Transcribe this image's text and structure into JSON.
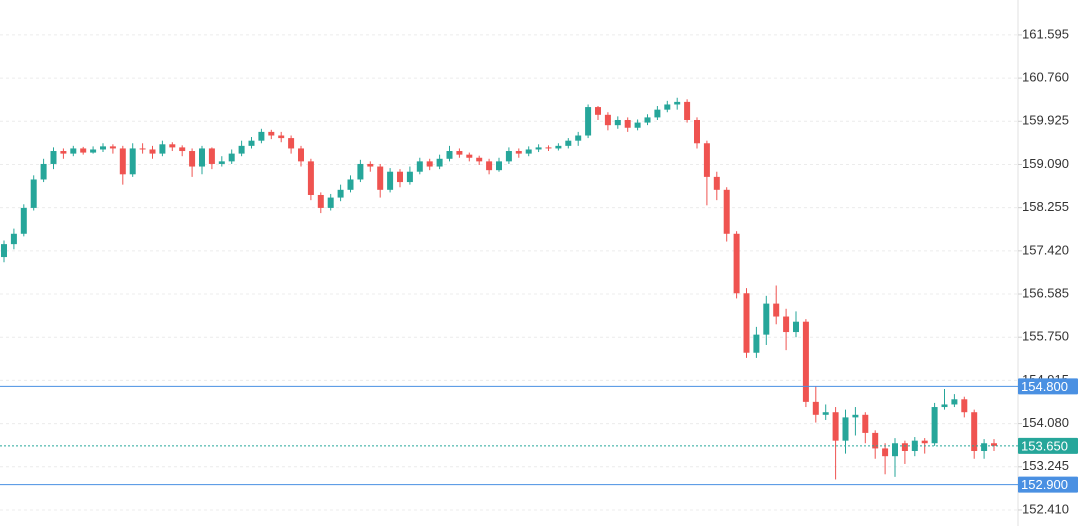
{
  "chart_data": {
    "type": "candlestick",
    "ylim": [
      152.1,
      162.27
    ],
    "yticks": [
      {
        "value": 161.595,
        "label": "161.595"
      },
      {
        "value": 160.76,
        "label": "160.760"
      },
      {
        "value": 159.925,
        "label": "159.925"
      },
      {
        "value": 159.09,
        "label": "159.090"
      },
      {
        "value": 158.255,
        "label": "158.255"
      },
      {
        "value": 157.42,
        "label": "157.420"
      },
      {
        "value": 156.585,
        "label": "156.585"
      },
      {
        "value": 155.75,
        "label": "155.750"
      },
      {
        "value": 154.915,
        "label": "154.915"
      },
      {
        "value": 154.08,
        "label": "154.080"
      },
      {
        "value": 153.245,
        "label": "153.245"
      },
      {
        "value": 152.41,
        "label": "152.410"
      }
    ],
    "grid": true,
    "up_color": "#26a69a",
    "down_color": "#ef5350",
    "open": [
      157.3,
      157.55,
      157.75,
      158.25,
      158.8,
      159.1,
      159.35,
      159.3,
      159.4,
      159.32,
      159.38,
      159.44,
      159.4,
      158.9,
      159.4,
      159.38,
      159.3,
      159.48,
      159.42,
      159.35,
      159.05,
      159.4,
      159.1,
      159.15,
      159.3,
      159.45,
      159.55,
      159.72,
      159.65,
      159.6,
      159.4,
      159.15,
      158.5,
      158.25,
      158.45,
      158.6,
      158.8,
      159.1,
      159.05,
      158.6,
      158.95,
      158.75,
      158.95,
      159.15,
      159.05,
      159.2,
      159.35,
      159.28,
      159.22,
      159.15,
      158.98,
      159.15,
      159.35,
      159.3,
      159.38,
      159.42,
      159.4,
      159.45,
      159.55,
      159.65,
      160.2,
      160.05,
      159.85,
      159.95,
      159.8,
      159.9,
      160.0,
      160.15,
      160.25,
      160.3,
      159.95,
      159.5,
      158.85,
      158.6,
      157.75,
      156.6,
      155.45,
      155.8,
      156.4,
      156.15,
      155.85,
      156.05,
      154.5,
      154.25,
      154.3,
      153.75,
      154.2,
      154.25,
      153.9,
      153.6,
      153.45,
      153.7,
      153.55,
      153.75,
      153.7,
      154.4,
      154.45,
      154.55,
      154.3,
      153.55,
      153.7
    ],
    "high": [
      157.62,
      157.85,
      158.32,
      158.88,
      159.2,
      159.42,
      159.4,
      159.45,
      159.43,
      159.44,
      159.5,
      159.48,
      159.45,
      159.5,
      159.5,
      159.45,
      159.55,
      159.52,
      159.46,
      159.4,
      159.45,
      159.42,
      159.25,
      159.38,
      159.55,
      159.62,
      159.78,
      159.76,
      159.72,
      159.65,
      159.45,
      159.2,
      158.55,
      158.52,
      158.7,
      158.88,
      159.18,
      159.15,
      159.1,
      159.02,
      159.0,
      159.05,
      159.22,
      159.2,
      159.28,
      159.45,
      159.4,
      159.32,
      159.26,
      159.2,
      159.22,
      159.42,
      159.4,
      159.44,
      159.48,
      159.46,
      159.5,
      159.6,
      159.72,
      160.25,
      160.22,
      160.1,
      160.02,
      160.0,
      159.96,
      160.06,
      160.22,
      160.32,
      160.38,
      160.35,
      160.0,
      159.55,
      158.95,
      158.65,
      157.8,
      156.7,
      155.95,
      156.55,
      156.75,
      156.3,
      156.25,
      156.1,
      154.8,
      154.45,
      154.4,
      154.35,
      154.4,
      154.3,
      153.95,
      153.7,
      153.8,
      153.75,
      153.82,
      153.8,
      154.48,
      154.75,
      154.65,
      154.6,
      154.35,
      153.78,
      153.78
    ],
    "low": [
      157.2,
      157.45,
      157.7,
      158.2,
      158.75,
      159.0,
      159.2,
      159.25,
      159.28,
      159.3,
      159.33,
      159.3,
      158.7,
      158.85,
      159.3,
      159.2,
      159.25,
      159.35,
      159.25,
      158.85,
      158.9,
      159.0,
      159.05,
      159.1,
      159.25,
      159.4,
      159.5,
      159.58,
      159.52,
      159.3,
      159.05,
      158.4,
      158.15,
      158.2,
      158.38,
      158.55,
      158.75,
      158.95,
      158.45,
      158.55,
      158.65,
      158.7,
      158.9,
      158.98,
      159.0,
      159.15,
      159.22,
      159.15,
      159.08,
      158.9,
      158.95,
      159.1,
      159.22,
      159.25,
      159.33,
      159.35,
      159.36,
      159.4,
      159.45,
      159.6,
      159.95,
      159.75,
      159.78,
      159.72,
      159.75,
      159.85,
      159.95,
      160.1,
      160.15,
      159.9,
      159.4,
      158.3,
      158.4,
      157.6,
      156.5,
      155.35,
      155.35,
      155.6,
      156.0,
      155.5,
      155.75,
      154.4,
      154.1,
      154.15,
      153.0,
      153.5,
      153.85,
      153.7,
      153.4,
      153.1,
      153.05,
      153.3,
      153.45,
      153.5,
      153.65,
      154.35,
      154.4,
      154.2,
      153.4,
      153.4,
      153.55
    ],
    "close": [
      157.55,
      157.75,
      158.25,
      158.8,
      159.1,
      159.35,
      159.3,
      159.4,
      159.32,
      159.38,
      159.44,
      159.4,
      158.9,
      159.4,
      159.38,
      159.3,
      159.48,
      159.42,
      159.35,
      159.05,
      159.4,
      159.1,
      159.15,
      159.3,
      159.45,
      159.55,
      159.72,
      159.65,
      159.6,
      159.4,
      159.15,
      158.5,
      158.25,
      158.45,
      158.6,
      158.8,
      159.1,
      159.05,
      158.6,
      158.95,
      158.75,
      158.95,
      159.15,
      159.05,
      159.2,
      159.35,
      159.28,
      159.22,
      159.15,
      158.98,
      159.15,
      159.35,
      159.3,
      159.38,
      159.42,
      159.4,
      159.45,
      159.55,
      159.65,
      160.2,
      160.05,
      159.85,
      159.95,
      159.8,
      159.9,
      160.0,
      160.15,
      160.25,
      160.3,
      159.95,
      159.5,
      158.85,
      158.6,
      157.75,
      156.6,
      155.45,
      155.8,
      156.4,
      156.15,
      155.85,
      156.05,
      154.5,
      154.25,
      154.3,
      153.75,
      154.2,
      154.25,
      153.9,
      153.6,
      153.45,
      153.7,
      153.55,
      153.75,
      153.7,
      154.4,
      154.45,
      154.55,
      154.3,
      153.55,
      153.7,
      153.65
    ],
    "price_lines": [
      {
        "value": 154.8,
        "label": "154.800",
        "color": "#4a90e2"
      },
      {
        "value": 152.9,
        "label": "152.900",
        "color": "#4a90e2"
      }
    ],
    "last_price": {
      "value": 153.65,
      "label": "153.650",
      "color": "#26a69a"
    }
  }
}
